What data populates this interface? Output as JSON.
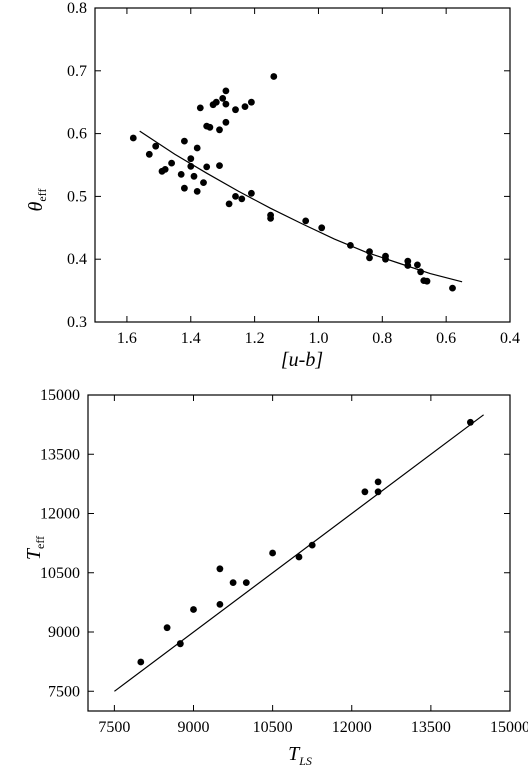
{
  "chart_data": [
    {
      "type": "scatter",
      "title": "",
      "xlabel": "[u-b]",
      "ylabel": "θ",
      "ylabel_sub": "eff",
      "xlim": [
        1.7,
        0.4
      ],
      "ylim": [
        0.3,
        0.8
      ],
      "x_reversed": true,
      "xticks": [
        1.6,
        1.4,
        1.2,
        1.0,
        0.8,
        0.6,
        0.4
      ],
      "xtick_labels": [
        "1.6",
        "1.4",
        "1.2",
        "1.0",
        "0.8",
        "0.6",
        "0.4"
      ],
      "yticks": [
        0.3,
        0.4,
        0.5,
        0.6,
        0.7,
        0.8
      ],
      "ytick_labels": [
        "0.3",
        "0.4",
        "0.5",
        "0.6",
        "0.7",
        "0.8"
      ],
      "grid": false,
      "points": [
        [
          1.58,
          0.593
        ],
        [
          1.53,
          0.567
        ],
        [
          1.51,
          0.58
        ],
        [
          1.49,
          0.54
        ],
        [
          1.48,
          0.543
        ],
        [
          1.46,
          0.553
        ],
        [
          1.43,
          0.535
        ],
        [
          1.42,
          0.513
        ],
        [
          1.42,
          0.588
        ],
        [
          1.4,
          0.548
        ],
        [
          1.4,
          0.56
        ],
        [
          1.39,
          0.532
        ],
        [
          1.38,
          0.508
        ],
        [
          1.38,
          0.577
        ],
        [
          1.36,
          0.522
        ],
        [
          1.35,
          0.547
        ],
        [
          1.37,
          0.641
        ],
        [
          1.35,
          0.612
        ],
        [
          1.34,
          0.61
        ],
        [
          1.33,
          0.646
        ],
        [
          1.32,
          0.65
        ],
        [
          1.31,
          0.549
        ],
        [
          1.31,
          0.606
        ],
        [
          1.3,
          0.656
        ],
        [
          1.29,
          0.668
        ],
        [
          1.29,
          0.647
        ],
        [
          1.29,
          0.618
        ],
        [
          1.28,
          0.488
        ],
        [
          1.26,
          0.5
        ],
        [
          1.26,
          0.638
        ],
        [
          1.24,
          0.496
        ],
        [
          1.23,
          0.643
        ],
        [
          1.21,
          0.65
        ],
        [
          1.21,
          0.505
        ],
        [
          1.15,
          0.47
        ],
        [
          1.15,
          0.465
        ],
        [
          1.14,
          0.691
        ],
        [
          1.04,
          0.461
        ],
        [
          0.99,
          0.45
        ],
        [
          0.9,
          0.422
        ],
        [
          0.84,
          0.412
        ],
        [
          0.84,
          0.402
        ],
        [
          0.79,
          0.405
        ],
        [
          0.79,
          0.4
        ],
        [
          0.72,
          0.397
        ],
        [
          0.72,
          0.39
        ],
        [
          0.69,
          0.391
        ],
        [
          0.68,
          0.38
        ],
        [
          0.67,
          0.366
        ],
        [
          0.66,
          0.365
        ],
        [
          0.58,
          0.354
        ]
      ],
      "fit_line": {
        "x": [
          1.56,
          1.45,
          1.35,
          1.25,
          1.15,
          1.05,
          0.95,
          0.85,
          0.75,
          0.65,
          0.55
        ],
        "y": [
          0.604,
          0.567,
          0.537,
          0.508,
          0.481,
          0.456,
          0.432,
          0.411,
          0.394,
          0.377,
          0.364
        ]
      }
    },
    {
      "type": "scatter",
      "title": "",
      "xlabel": "T",
      "xlabel_sub": "LS",
      "ylabel": "T",
      "ylabel_sub": "eff",
      "xlim": [
        7000,
        15000
      ],
      "ylim": [
        7000,
        15000
      ],
      "xticks": [
        7500,
        9000,
        10500,
        12000,
        13500,
        15000
      ],
      "xtick_labels": [
        "7500",
        "9000",
        "10500",
        "12000",
        "13500",
        "15000"
      ],
      "yticks": [
        7500,
        9000,
        10500,
        12000,
        13500,
        15000
      ],
      "ytick_labels": [
        "7500",
        "9000",
        "10500",
        "12000",
        "13500",
        "15000"
      ],
      "grid": false,
      "points": [
        [
          8000,
          8240
        ],
        [
          8500,
          9110
        ],
        [
          8750,
          8710
        ],
        [
          8750,
          8700
        ],
        [
          9000,
          9570
        ],
        [
          9500,
          10600
        ],
        [
          9500,
          9700
        ],
        [
          9750,
          10250
        ],
        [
          10000,
          10250
        ],
        [
          10500,
          11000
        ],
        [
          11000,
          10900
        ],
        [
          11250,
          11200
        ],
        [
          12250,
          12550
        ],
        [
          12500,
          12550
        ],
        [
          12500,
          12800
        ],
        [
          14250,
          14310
        ]
      ],
      "fit_line": {
        "x": [
          7500,
          14500
        ],
        "y": [
          7500,
          14500
        ]
      }
    }
  ]
}
